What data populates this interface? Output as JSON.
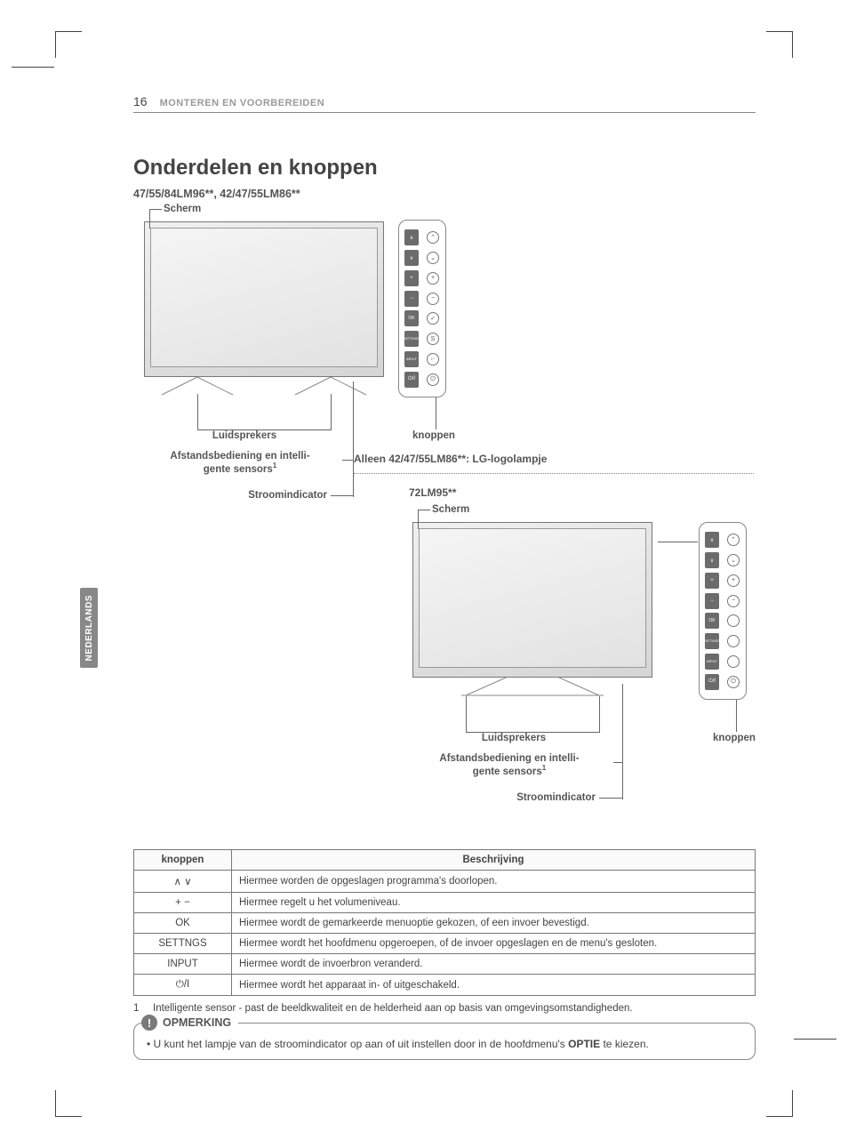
{
  "page_number": "16",
  "header_title": "MONTEREN EN VOORBEREIDEN",
  "language_tab": "NEDERLANDS",
  "section_title": "Onderdelen en knoppen",
  "models_line": "47/55/84LM96**, 42/47/55LM86**",
  "diagram1": {
    "scherm": "Scherm",
    "luidsprekers": "Luidsprekers",
    "sensors_line1": "Afstandsbediening en intelli-",
    "sensors_line2": "gente sensors",
    "sensors_sup": "1",
    "stroomindicator": "Stroomindicator",
    "knoppen": "knoppen",
    "alleen_line": "Alleen 42/47/55LM86**: LG-logolampje"
  },
  "diagram2_title": "72LM95**",
  "diagram2": {
    "scherm": "Scherm",
    "luidsprekers": "Luidsprekers",
    "sensors_line1": "Afstandsbediening en intelli-",
    "sensors_line2": "gente sensors",
    "sensors_sup": "1",
    "stroomindicator": "Stroomindicator",
    "knoppen": "knoppen"
  },
  "button_labels": {
    "up": "∧",
    "down": "∨",
    "plus": "+",
    "minus": "−",
    "ok": "OK",
    "settings": "SETTINGS",
    "input": "INPUT",
    "power": "⏻/I"
  },
  "circle_icons": {
    "up": "⌃",
    "down": "⌄",
    "plus": "+",
    "minus": "−",
    "ok": "✓",
    "settings": "S",
    "input": "←",
    "power": "⏻"
  },
  "table": {
    "head_knoppen": "knoppen",
    "head_beschrijving": "Beschrijving",
    "rows": [
      {
        "key": "updown",
        "label": "∧ ∨",
        "desc": "Hiermee worden de opgeslagen programma's doorlopen."
      },
      {
        "key": "plusminus",
        "label": "+ −",
        "desc": "Hiermee regelt u het volumeniveau."
      },
      {
        "key": "ok",
        "label": "OK",
        "desc": "Hiermee wordt de gemarkeerde menuoptie gekozen, of een invoer bevestigd."
      },
      {
        "key": "settings",
        "label": "SETTNGS",
        "desc": "Hiermee wordt het hoofdmenu opgeroepen, of de invoer opgeslagen en de menu's gesloten."
      },
      {
        "key": "input",
        "label": "INPUT",
        "desc": "Hiermee wordt de invoerbron veranderd."
      },
      {
        "key": "power",
        "label": "⏻/I",
        "desc": "Hiermee wordt het apparaat in- of uitgeschakeld."
      }
    ]
  },
  "footnote_num": "1",
  "footnote_text": "Intelligente sensor - past de beeldkwaliteit en de helderheid aan op basis van omgevingsomstandigheden.",
  "note_title": "OPMERKING",
  "note_body_pre": "U kunt het lampje van de stroomindicator op aan of uit instellen door in de hoofdmenu's ",
  "note_body_bold": "OPTIE",
  "note_body_post": " te kiezen.",
  "colors": {
    "text": "#3a3a3a",
    "muted": "#9a9a9a",
    "border": "#777777",
    "darkbtn": "#6b6b6b",
    "tab": "#888888"
  }
}
